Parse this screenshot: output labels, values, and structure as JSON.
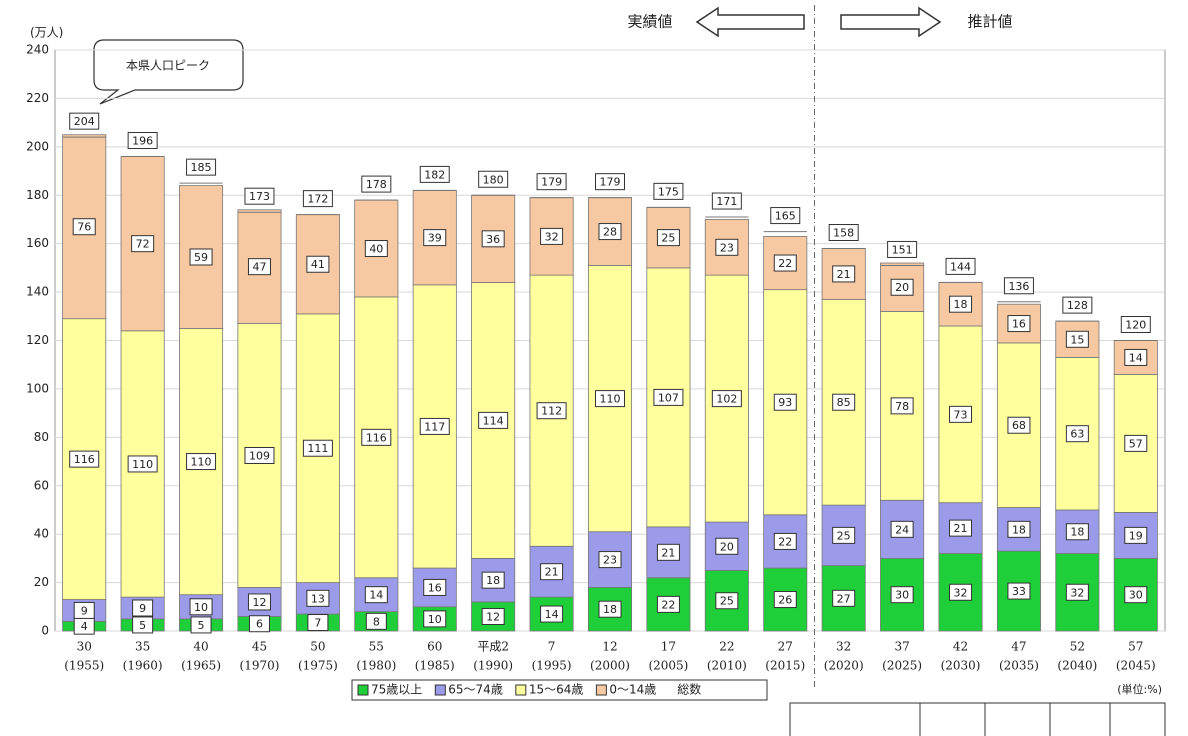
{
  "chart_data": {
    "type": "stacked_bar",
    "y_unit": "(万人)",
    "annotations": {
      "peak": "本県人口ピーク",
      "actual": "実績値",
      "projected": "推計値",
      "unit_note": "(単位:%)"
    },
    "categories": [
      [
        "30",
        "(1955)"
      ],
      [
        "35",
        "(1960)"
      ],
      [
        "40",
        "(1965)"
      ],
      [
        "45",
        "(1970)"
      ],
      [
        "50",
        "(1975)"
      ],
      [
        "55",
        "(1980)"
      ],
      [
        "60",
        "(1985)"
      ],
      [
        "平成2",
        "(1990)"
      ],
      [
        "7",
        "(1995)"
      ],
      [
        "12",
        "(2000)"
      ],
      [
        "17",
        "(2005)"
      ],
      [
        "22",
        "(2010)"
      ],
      [
        "27",
        "(2015)"
      ],
      [
        "32",
        "(2020)"
      ],
      [
        "37",
        "(2025)"
      ],
      [
        "42",
        "(2030)"
      ],
      [
        "47",
        "(2035)"
      ],
      [
        "52",
        "(2040)"
      ],
      [
        "57",
        "(2045)"
      ]
    ],
    "series": [
      {
        "name": "75歳以上",
        "color": "#1fcf3a",
        "values": [
          4,
          5,
          5,
          6,
          7,
          8,
          10,
          12,
          14,
          18,
          22,
          25,
          26,
          27,
          30,
          32,
          33,
          32,
          30
        ]
      },
      {
        "name": "65～74歳",
        "color": "#9b9bea",
        "values": [
          9,
          9,
          10,
          12,
          13,
          14,
          16,
          18,
          21,
          23,
          21,
          20,
          22,
          25,
          24,
          21,
          18,
          18,
          19
        ]
      },
      {
        "name": "15～64歳",
        "color": "#ffff9e",
        "values": [
          116,
          110,
          110,
          109,
          111,
          116,
          117,
          114,
          112,
          110,
          107,
          102,
          93,
          85,
          78,
          73,
          68,
          63,
          57
        ]
      },
      {
        "name": "0～14歳",
        "color": "#f7c9a2",
        "values": [
          76,
          72,
          59,
          47,
          41,
          40,
          39,
          36,
          32,
          28,
          25,
          23,
          22,
          21,
          20,
          18,
          16,
          15,
          14
        ]
      }
    ],
    "totals_name": "総数",
    "totals": [
      204,
      196,
      185,
      173,
      172,
      178,
      182,
      180,
      179,
      179,
      175,
      171,
      165,
      158,
      151,
      144,
      136,
      128,
      120
    ],
    "ylim": [
      0,
      240
    ],
    "yticks": [
      0,
      20,
      40,
      60,
      80,
      100,
      120,
      140,
      160,
      180,
      200,
      220,
      240
    ],
    "grid": true
  }
}
